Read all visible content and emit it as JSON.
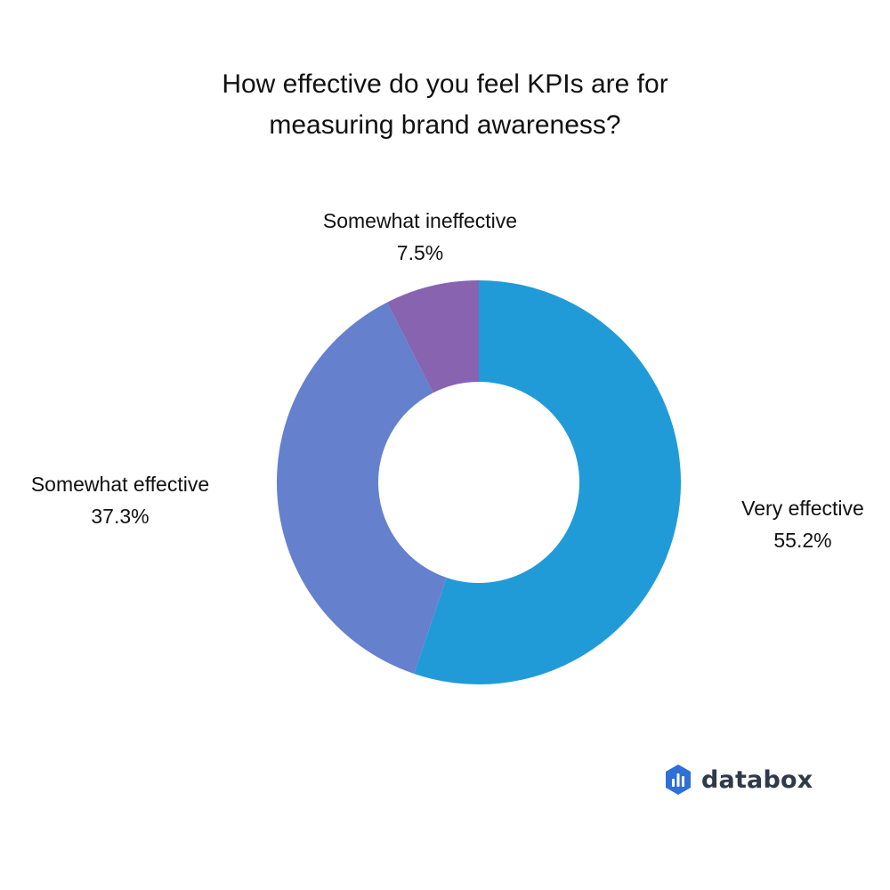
{
  "chart_data": {
    "type": "pie",
    "variant": "donut",
    "title": "How effective do you feel KPIs are for measuring brand awareness?",
    "title_lines": [
      "How effective do you feel KPIs are for",
      "measuring brand awareness?"
    ],
    "slices": [
      {
        "label": "Very effective",
        "value": 55.2,
        "value_label": "55.2%",
        "color": "#219bd7"
      },
      {
        "label": "Somewhat effective",
        "value": 37.3,
        "value_label": "37.3%",
        "color": "#6580cd"
      },
      {
        "label": "Somewhat ineffective",
        "value": 7.5,
        "value_label": "7.5%",
        "color": "#8763b0"
      }
    ],
    "start_angle_deg": 0,
    "direction": "clockwise"
  },
  "brand": {
    "name": "databox",
    "icon": "databox-logo-icon",
    "icon_color": "#2f6fd6"
  }
}
